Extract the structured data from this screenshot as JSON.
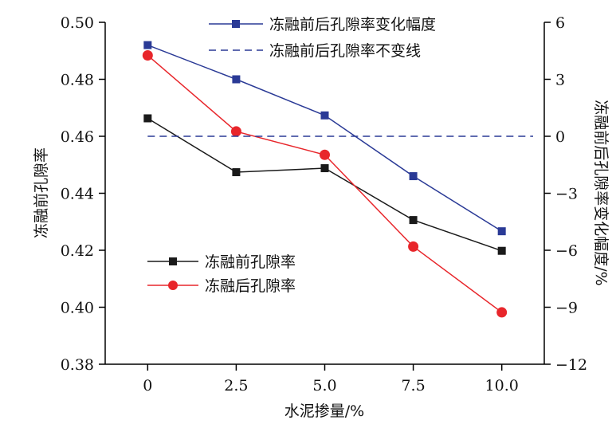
{
  "chart_data": {
    "type": "line",
    "x": [
      0,
      2.5,
      5.0,
      7.5,
      10.0
    ],
    "x_tick_labels": [
      "0",
      "2.5",
      "5.0",
      "7.5",
      "10.0"
    ],
    "xlabel": "水泥掺量/%",
    "xlim": [
      -1.2,
      11.2
    ],
    "ylabel_left": "冻融前孔隙率",
    "ylim_left": [
      0.38,
      0.5
    ],
    "y_ticks_left": [
      "0.50",
      "0.48",
      "0.46",
      "0.44",
      "0.42",
      "0.40",
      "0.38"
    ],
    "ylabel_right": "冻融前后孔隙率变化幅度/%",
    "ylim_right": [
      -12,
      6
    ],
    "y_ticks_right": [
      "6",
      "3",
      "0",
      "−3",
      "−6",
      "−9",
      "−12"
    ],
    "series": [
      {
        "name": "冻融前孔隙率",
        "axis": "left",
        "color": "#1a1a1a",
        "marker": "square",
        "values": [
          0.4663,
          0.4474,
          0.4488,
          0.4306,
          0.4198
        ]
      },
      {
        "name": "冻融后孔隙率",
        "axis": "left",
        "color": "#e8262b",
        "marker": "circle",
        "values": [
          0.4884,
          0.4617,
          0.4535,
          0.4213,
          0.3982
        ]
      },
      {
        "name": "冻融前后孔隙率变化幅度",
        "axis": "right",
        "color": "#2a3a96",
        "marker": "square",
        "values": [
          4.8,
          3.0,
          1.1,
          -2.1,
          -5.0
        ]
      },
      {
        "name": "冻融前后孔隙率不变线",
        "axis": "right",
        "color": "#2a3a96",
        "style": "dashed",
        "values": [
          0,
          0,
          0,
          0,
          0
        ]
      }
    ],
    "legend": {
      "top": [
        "冻融前后孔隙率变化幅度",
        "冻融前后孔隙率不变线"
      ],
      "bottom_left": [
        "冻融前孔隙率",
        "冻融后孔隙率"
      ]
    }
  }
}
